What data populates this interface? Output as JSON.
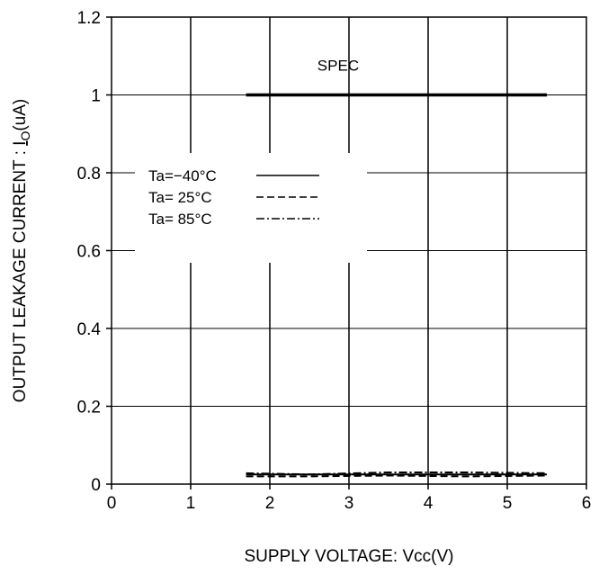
{
  "chart_data": {
    "type": "line",
    "xlabel": "SUPPLY VOLTAGE: Vcc(V)",
    "ylabel": "OUTPUT LEAKAGE CURRENT : ",
    "ylabel_symbol": "I",
    "ylabel_subscript": "O",
    "ylabel_unit": "(uA)",
    "xlim": [
      0,
      6
    ],
    "ylim": [
      0,
      1.2
    ],
    "xticks": [
      "0",
      "1",
      "2",
      "3",
      "4",
      "5",
      "6"
    ],
    "yticks": [
      "0",
      "0.2",
      "0.4",
      "0.6",
      "0.8",
      "1",
      "1.2"
    ],
    "grid": "vertical-and-horizontal",
    "legend_position": "center-left",
    "annotation": {
      "text": "SPEC",
      "x": 2.6,
      "y": 1.06
    },
    "series": [
      {
        "name": "SPEC",
        "style": "thick-solid",
        "x": [
          1.7,
          5.5
        ],
        "y": [
          1.0,
          1.0
        ]
      },
      {
        "name": "Ta=−40°C",
        "style": "solid",
        "x": [
          1.7,
          2.5,
          3.5,
          4.5,
          5.5
        ],
        "y": [
          0.025,
          0.025,
          0.025,
          0.025,
          0.025
        ]
      },
      {
        "name": "Ta= 25°C",
        "style": "dashed",
        "x": [
          1.7,
          2.5,
          3.5,
          4.5,
          5.5
        ],
        "y": [
          0.02,
          0.02,
          0.022,
          0.02,
          0.022
        ]
      },
      {
        "name": "Ta= 85°C",
        "style": "dashdot",
        "x": [
          1.7,
          2.5,
          3.5,
          4.5,
          5.5
        ],
        "y": [
          0.028,
          0.025,
          0.03,
          0.03,
          0.028
        ]
      }
    ],
    "legend": [
      {
        "label": "Ta=−40°C",
        "style": "solid"
      },
      {
        "label": "Ta= 25°C",
        "style": "dashed"
      },
      {
        "label": "Ta= 85°C",
        "style": "dashdot"
      }
    ]
  }
}
